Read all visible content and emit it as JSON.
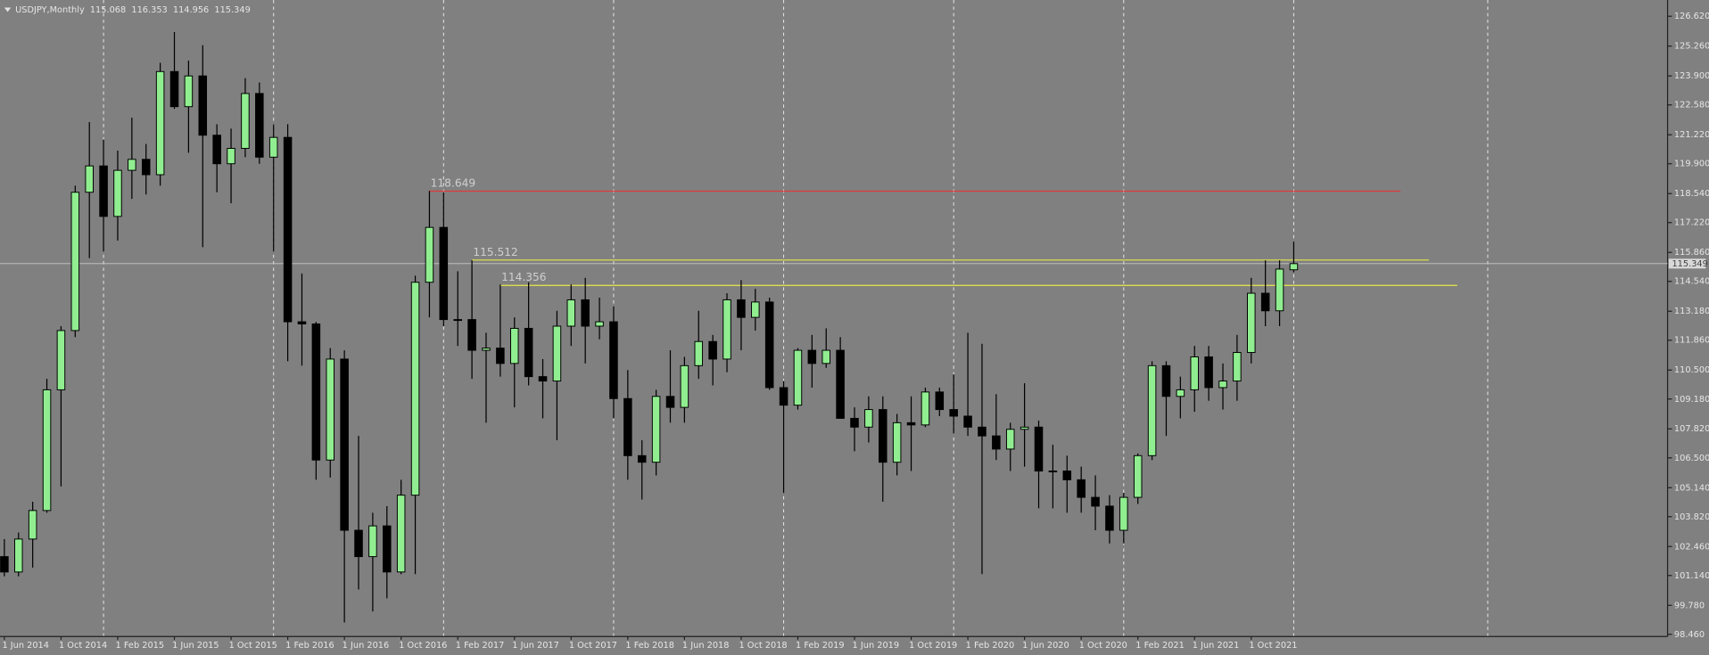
{
  "chart_data": {
    "type": "candlestick",
    "title": "USDJPY,Monthly",
    "categories": [
      "1 Jun 2014",
      null,
      null,
      null,
      "1 Oct 2014",
      null,
      null,
      null,
      "1 Feb 2015",
      null,
      null,
      null,
      "1 Jun 2015",
      null,
      null,
      null,
      "1 Oct 2015",
      null,
      null,
      null,
      "1 Feb 2016",
      null,
      null,
      null,
      "1 Jun 2016",
      null,
      null,
      null,
      "1 Oct 2016",
      null,
      null,
      null,
      "1 Feb 2017",
      null,
      null,
      null,
      "1 Jun 2017",
      null,
      null,
      null,
      "1 Oct 2017",
      null,
      null,
      null,
      "1 Feb 2018",
      null,
      null,
      null,
      "1 Jun 2018",
      null,
      null,
      null,
      "1 Oct 2018",
      null,
      null,
      null,
      "1 Feb 2019",
      null,
      null,
      null,
      "1 Jun 2019",
      null,
      null,
      null,
      "1 Oct 2019",
      null,
      null,
      null,
      "1 Feb 2020",
      null,
      null,
      null,
      "1 Jun 2020",
      null,
      null,
      null,
      "1 Oct 2020",
      null,
      null,
      null,
      "1 Feb 2021",
      null,
      null,
      null,
      "1 Jun 2021",
      null,
      null,
      null,
      "1 Oct 2021",
      null,
      null,
      null
    ],
    "open": [
      102.0,
      101.3,
      102.8,
      104.1,
      109.6,
      112.3,
      118.6,
      119.8,
      117.5,
      119.6,
      120.1,
      119.4,
      124.1,
      122.5,
      123.9,
      121.2,
      119.9,
      120.6,
      123.1,
      120.2,
      121.1,
      112.7,
      112.6,
      106.4,
      111.0,
      103.2,
      102.0,
      103.4,
      101.3,
      104.8,
      114.5,
      117.0,
      112.8,
      112.8,
      111.4,
      111.5,
      110.8,
      112.4,
      110.2,
      110.0,
      112.5,
      113.7,
      112.5,
      112.7,
      109.2,
      106.6,
      106.3,
      109.3,
      108.8,
      110.7,
      111.8,
      111.0,
      113.7,
      112.9,
      113.6,
      109.7,
      108.9,
      111.4,
      110.8,
      111.4,
      108.3,
      107.9,
      108.7,
      106.3,
      108.1,
      108.0,
      109.5,
      108.7,
      108.4,
      107.9,
      107.5,
      106.9,
      107.8,
      107.9,
      105.9,
      105.9,
      105.5,
      104.7,
      104.3,
      103.2,
      104.7,
      106.6,
      110.7,
      109.3,
      109.6,
      111.1,
      109.7,
      110.0,
      111.3,
      114.0,
      113.2,
      115.068
    ],
    "high": [
      102.8,
      103.1,
      104.5,
      110.1,
      112.5,
      118.9,
      121.8,
      121.0,
      120.5,
      122.0,
      120.8,
      124.5,
      125.9,
      124.6,
      125.3,
      121.7,
      121.5,
      123.8,
      123.6,
      121.7,
      121.7,
      114.9,
      112.7,
      111.5,
      111.4,
      107.5,
      104.0,
      104.3,
      105.5,
      114.8,
      118.66,
      118.6,
      115.0,
      115.5,
      112.2,
      114.4,
      112.9,
      114.5,
      111.0,
      113.2,
      114.4,
      114.7,
      113.8,
      113.4,
      110.5,
      107.3,
      109.6,
      111.4,
      111.1,
      113.2,
      112.1,
      114.0,
      114.6,
      114.2,
      113.8,
      110.0,
      111.5,
      112.1,
      112.4,
      112.0,
      108.8,
      109.3,
      109.3,
      108.5,
      109.3,
      109.7,
      109.7,
      110.3,
      112.2,
      111.7,
      109.4,
      108.1,
      109.9,
      108.2,
      107.1,
      106.6,
      106.1,
      105.7,
      104.8,
      104.9,
      106.7,
      110.9,
      110.9,
      110.2,
      111.6,
      111.6,
      110.8,
      112.1,
      114.7,
      115.5,
      115.5,
      116.353
    ],
    "low": [
      101.1,
      101.1,
      101.5,
      104.0,
      105.2,
      112.0,
      115.6,
      115.9,
      116.4,
      118.3,
      118.5,
      118.9,
      122.4,
      120.4,
      116.1,
      118.6,
      118.1,
      120.2,
      119.9,
      115.9,
      110.9,
      110.7,
      105.5,
      105.6,
      99.0,
      100.5,
      99.5,
      100.1,
      101.2,
      101.2,
      112.9,
      112.5,
      111.6,
      110.1,
      108.1,
      110.2,
      108.8,
      109.8,
      108.3,
      107.3,
      111.6,
      110.8,
      111.9,
      108.3,
      105.5,
      104.6,
      105.7,
      108.1,
      108.1,
      110.1,
      109.8,
      110.4,
      111.4,
      112.3,
      109.6,
      104.9,
      108.7,
      109.7,
      110.6,
      108.3,
      106.8,
      107.2,
      104.5,
      105.7,
      105.9,
      107.9,
      108.4,
      107.6,
      107.5,
      101.2,
      106.4,
      105.9,
      106.1,
      104.2,
      104.2,
      104.0,
      104.0,
      103.2,
      102.6,
      102.6,
      104.4,
      106.4,
      107.5,
      108.3,
      108.6,
      109.1,
      108.7,
      109.1,
      110.8,
      112.5,
      112.5,
      114.956
    ],
    "close": [
      101.3,
      102.8,
      104.1,
      109.6,
      112.3,
      118.6,
      119.8,
      117.5,
      119.6,
      120.1,
      119.4,
      124.1,
      122.5,
      123.9,
      121.2,
      119.9,
      120.6,
      123.1,
      120.2,
      121.1,
      112.7,
      112.6,
      106.4,
      111.0,
      103.2,
      102.0,
      103.4,
      101.3,
      104.8,
      114.5,
      117.0,
      112.8,
      112.8,
      111.4,
      111.5,
      110.8,
      112.4,
      110.2,
      110.0,
      112.5,
      113.7,
      112.5,
      112.7,
      109.2,
      106.6,
      106.3,
      109.3,
      108.8,
      110.7,
      111.8,
      111.0,
      113.7,
      112.9,
      113.6,
      109.7,
      108.9,
      111.4,
      110.8,
      111.4,
      108.3,
      107.9,
      108.7,
      106.3,
      108.1,
      108.0,
      109.5,
      108.7,
      108.4,
      107.9,
      107.5,
      106.9,
      107.8,
      107.9,
      105.9,
      105.9,
      105.5,
      104.7,
      104.3,
      103.2,
      104.7,
      106.6,
      110.7,
      109.3,
      109.6,
      111.1,
      109.7,
      110.0,
      111.3,
      114.0,
      113.2,
      115.1,
      115.349
    ],
    "up_color": "#90ee90",
    "down_color": "#000000",
    "levels": [
      {
        "value": 118.649,
        "color": "#e03a3a"
      },
      {
        "value": 115.512,
        "color": "#e8e84a"
      },
      {
        "value": 114.356,
        "color": "#e8e84a"
      }
    ],
    "ylim": [
      98.36,
      127.36
    ],
    "yticks": [
      {
        "value": 126.62,
        "label": "126.620"
      },
      {
        "value": 125.26,
        "label": "125.260"
      },
      {
        "value": 123.9,
        "label": "123.900"
      },
      {
        "value": 122.58,
        "label": "122.580"
      },
      {
        "value": 121.22,
        "label": "121.220"
      },
      {
        "value": 119.9,
        "label": "119.900"
      },
      {
        "value": 118.54,
        "label": "118.540"
      },
      {
        "value": 117.22,
        "label": "117.220"
      },
      {
        "value": 115.86,
        "label": "115.860"
      },
      {
        "value": 114.54,
        "label": "114.540"
      },
      {
        "value": 113.18,
        "label": "113.180"
      },
      {
        "value": 111.86,
        "label": "111.860"
      },
      {
        "value": 110.5,
        "label": "110.500"
      },
      {
        "value": 109.18,
        "label": "109.180"
      },
      {
        "value": 107.82,
        "label": "107.820"
      },
      {
        "value": 106.5,
        "label": "106.500"
      },
      {
        "value": 105.14,
        "label": "105.140"
      },
      {
        "value": 103.82,
        "label": "103.820"
      },
      {
        "value": 102.46,
        "label": "102.460"
      },
      {
        "value": 101.14,
        "label": "101.140"
      },
      {
        "value": 99.78,
        "label": "99.780"
      },
      {
        "value": 98.46,
        "label": "98.460"
      }
    ],
    "grid": true
  }
}
